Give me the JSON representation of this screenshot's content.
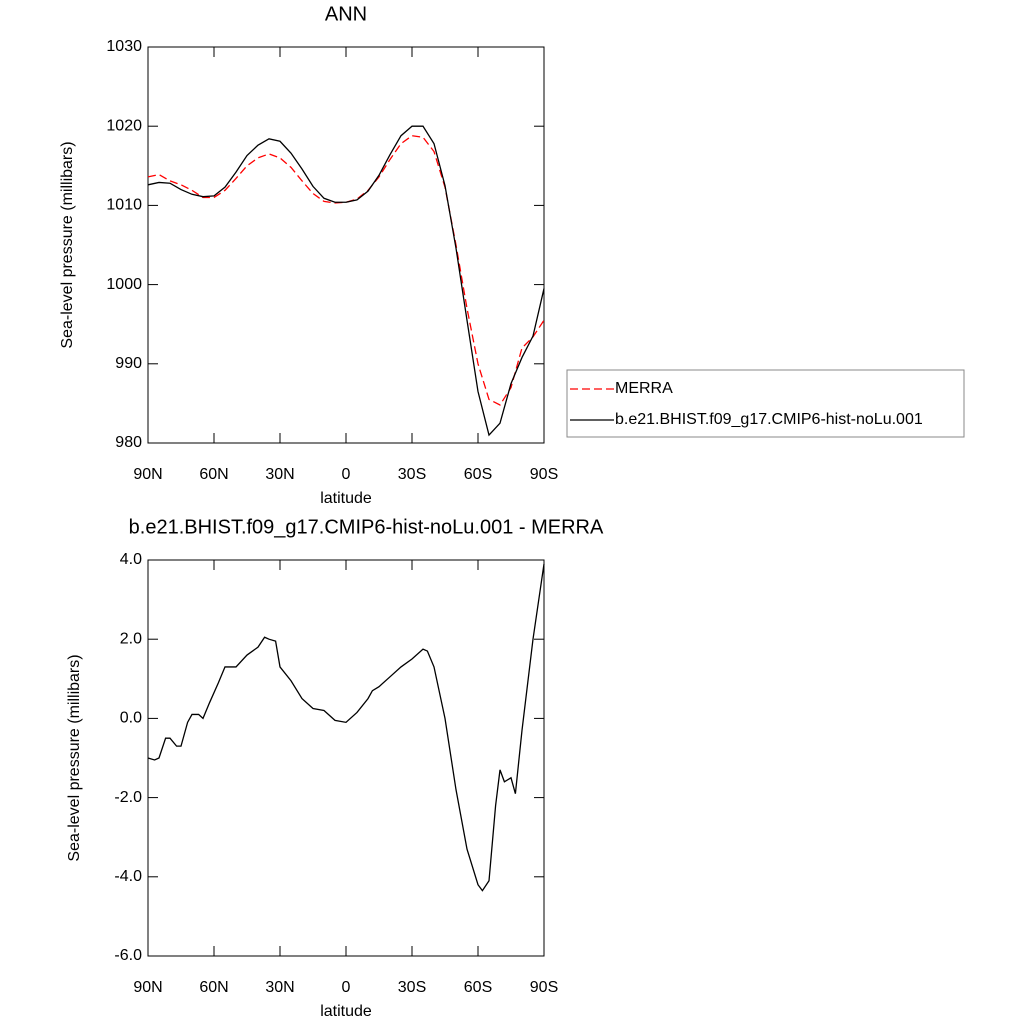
{
  "chart_data": [
    {
      "type": "line",
      "title": "ANN",
      "xlabel": "latitude",
      "ylabel": "Sea-level pressure (millibars)",
      "x": [
        90,
        85,
        80,
        75,
        70,
        65,
        60,
        55,
        50,
        45,
        40,
        35,
        30,
        25,
        20,
        15,
        10,
        5,
        0,
        -5,
        -10,
        -15,
        -20,
        -25,
        -30,
        -35,
        -40,
        -45,
        -50,
        -55,
        -60,
        -65,
        -70,
        -75,
        -80,
        -85,
        -90
      ],
      "series": [
        {
          "name": "MERRA",
          "color": "#ff0000",
          "line_style": "dashed",
          "values": [
            1013.6,
            1013.9,
            1013.1,
            1012.6,
            1011.9,
            1011.0,
            1011.0,
            1011.9,
            1013.4,
            1015.0,
            1016.0,
            1016.5,
            1016.0,
            1014.8,
            1013.1,
            1011.5,
            1010.5,
            1010.3,
            1010.4,
            1010.8,
            1011.9,
            1013.6,
            1015.8,
            1017.8,
            1018.8,
            1018.6,
            1016.8,
            1012.3,
            1005.0,
            997.0,
            990.0,
            985.5,
            984.8,
            987.0,
            992.0,
            993.4,
            995.5
          ]
        },
        {
          "name": "b.e21.BHIST.f09_g17.CMIP6-hist-noLu.001",
          "color": "#000000",
          "line_style": "solid",
          "values": [
            1012.6,
            1012.9,
            1012.8,
            1012.0,
            1011.4,
            1011.1,
            1011.2,
            1012.3,
            1014.2,
            1016.3,
            1017.6,
            1018.4,
            1018.1,
            1016.6,
            1014.6,
            1012.4,
            1010.9,
            1010.4,
            1010.4,
            1010.7,
            1011.8,
            1013.8,
            1016.4,
            1018.8,
            1020.0,
            1020.0,
            1017.8,
            1012.5,
            1004.6,
            995.5,
            986.5,
            981.0,
            982.5,
            987.5,
            990.8,
            993.5,
            999.5
          ]
        }
      ],
      "xlim": [
        90,
        -90
      ],
      "xticks": [
        {
          "value": 90,
          "label": "90N"
        },
        {
          "value": 60,
          "label": "60N"
        },
        {
          "value": 30,
          "label": "30N"
        },
        0,
        {
          "value": -30,
          "label": "30S"
        },
        {
          "value": -60,
          "label": "60S"
        },
        {
          "value": -90,
          "label": "90S"
        }
      ],
      "ylim": [
        980,
        1030
      ],
      "yticks": [
        980,
        990,
        1000,
        1010,
        1020,
        1030
      ],
      "legend": "right"
    },
    {
      "type": "line",
      "title": "b.e21.BHIST.f09_g17.CMIP6-hist-noLu.001 - MERRA",
      "xlabel": "latitude",
      "ylabel": "Sea-level pressure (millibars)",
      "x": [
        90,
        87,
        85,
        82,
        80,
        77,
        75,
        72,
        70,
        67,
        65,
        62,
        58,
        55,
        50,
        45,
        40,
        37,
        35,
        32,
        30,
        25,
        20,
        15,
        10,
        5,
        0,
        -5,
        -10,
        -12,
        -15,
        -20,
        -25,
        -30,
        -35,
        -37,
        -40,
        -45,
        -50,
        -55,
        -60,
        -62,
        -65,
        -68,
        -70,
        -72,
        -75,
        -77,
        -80,
        -85,
        -90
      ],
      "series": [
        {
          "name": "b.e21.BHIST.f09_g17.CMIP6-hist-noLu.001 - MERRA",
          "color": "#000000",
          "line_style": "solid",
          "values": [
            -1.0,
            -1.05,
            -1.0,
            -0.5,
            -0.5,
            -0.7,
            -0.7,
            -0.1,
            0.1,
            0.1,
            0.0,
            0.4,
            0.9,
            1.3,
            1.3,
            1.6,
            1.8,
            2.05,
            2.0,
            1.95,
            1.3,
            0.95,
            0.5,
            0.25,
            0.2,
            -0.05,
            -0.1,
            0.15,
            0.5,
            0.7,
            0.8,
            1.05,
            1.3,
            1.5,
            1.75,
            1.7,
            1.3,
            0.0,
            -1.8,
            -3.3,
            -4.2,
            -4.35,
            -4.1,
            -2.2,
            -1.3,
            -1.6,
            -1.5,
            -1.9,
            -0.3,
            2.0,
            3.9
          ]
        }
      ],
      "xlim": [
        90,
        -90
      ],
      "xticks": [
        {
          "value": 90,
          "label": "90N"
        },
        {
          "value": 60,
          "label": "60N"
        },
        {
          "value": 30,
          "label": "30N"
        },
        0,
        {
          "value": -30,
          "label": "30S"
        },
        {
          "value": -60,
          "label": "60S"
        },
        {
          "value": -90,
          "label": "90S"
        }
      ],
      "ylim": [
        -6,
        4
      ],
      "yticks": [
        {
          "value": -6,
          "label": "-6.0"
        },
        {
          "value": -4,
          "label": "-4.0"
        },
        {
          "value": -2,
          "label": "-2.0"
        },
        {
          "value": 0,
          "label": "0.0"
        },
        {
          "value": 2,
          "label": "2.0"
        },
        {
          "value": 4,
          "label": "4.0"
        }
      ]
    }
  ]
}
